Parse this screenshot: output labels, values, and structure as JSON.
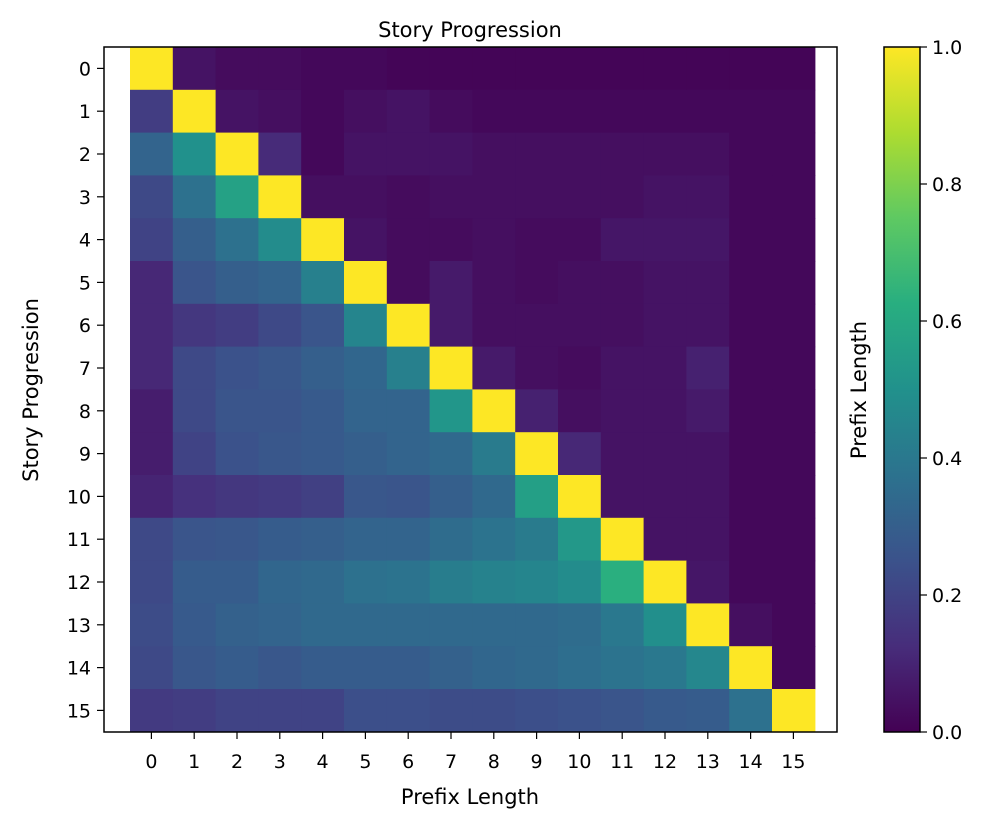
{
  "chart_data": {
    "type": "heatmap",
    "title": "Story Progression",
    "xlabel": "Prefix Length",
    "ylabel": "Story Progression",
    "colorbar_label": "Prefix Length",
    "colormap": "viridis",
    "x_ticks": [
      "0",
      "1",
      "2",
      "3",
      "4",
      "5",
      "6",
      "7",
      "8",
      "9",
      "10",
      "11",
      "12",
      "13",
      "14",
      "15"
    ],
    "y_ticks": [
      "0",
      "1",
      "2",
      "3",
      "4",
      "5",
      "6",
      "7",
      "8",
      "9",
      "10",
      "11",
      "12",
      "13",
      "14",
      "15"
    ],
    "colorbar_range": [
      0.0,
      1.0
    ],
    "colorbar_ticks": [
      "0.0",
      "0.2",
      "0.4",
      "0.6",
      "0.8",
      "1.0"
    ],
    "values": [
      [
        1.0,
        0.05,
        0.03,
        0.03,
        0.02,
        0.02,
        0.01,
        0.01,
        0.01,
        0.01,
        0.01,
        0.01,
        0.01,
        0.01,
        0.01,
        0.01
      ],
      [
        0.18,
        1.0,
        0.05,
        0.04,
        0.02,
        0.04,
        0.05,
        0.03,
        0.02,
        0.02,
        0.02,
        0.02,
        0.02,
        0.02,
        0.02,
        0.02
      ],
      [
        0.32,
        0.5,
        1.0,
        0.12,
        0.02,
        0.05,
        0.05,
        0.05,
        0.04,
        0.04,
        0.04,
        0.04,
        0.04,
        0.04,
        0.02,
        0.02
      ],
      [
        0.22,
        0.37,
        0.57,
        1.0,
        0.04,
        0.04,
        0.03,
        0.04,
        0.04,
        0.04,
        0.04,
        0.04,
        0.05,
        0.05,
        0.02,
        0.02
      ],
      [
        0.2,
        0.3,
        0.37,
        0.48,
        1.0,
        0.05,
        0.03,
        0.03,
        0.04,
        0.03,
        0.03,
        0.06,
        0.06,
        0.06,
        0.02,
        0.02
      ],
      [
        0.11,
        0.26,
        0.3,
        0.32,
        0.43,
        1.0,
        0.03,
        0.07,
        0.04,
        0.03,
        0.04,
        0.04,
        0.05,
        0.05,
        0.02,
        0.02
      ],
      [
        0.11,
        0.16,
        0.18,
        0.22,
        0.26,
        0.45,
        1.0,
        0.07,
        0.04,
        0.04,
        0.04,
        0.04,
        0.05,
        0.05,
        0.02,
        0.02
      ],
      [
        0.11,
        0.22,
        0.25,
        0.27,
        0.3,
        0.33,
        0.43,
        1.0,
        0.07,
        0.04,
        0.03,
        0.05,
        0.05,
        0.09,
        0.02,
        0.02
      ],
      [
        0.08,
        0.22,
        0.26,
        0.26,
        0.28,
        0.32,
        0.32,
        0.52,
        1.0,
        0.09,
        0.04,
        0.05,
        0.05,
        0.07,
        0.02,
        0.02
      ],
      [
        0.08,
        0.2,
        0.25,
        0.27,
        0.28,
        0.3,
        0.32,
        0.34,
        0.41,
        1.0,
        0.11,
        0.05,
        0.05,
        0.05,
        0.02,
        0.02
      ],
      [
        0.1,
        0.14,
        0.16,
        0.17,
        0.19,
        0.27,
        0.26,
        0.3,
        0.34,
        0.56,
        1.0,
        0.05,
        0.05,
        0.05,
        0.02,
        0.02
      ],
      [
        0.22,
        0.26,
        0.27,
        0.29,
        0.3,
        0.32,
        0.32,
        0.35,
        0.38,
        0.41,
        0.53,
        1.0,
        0.05,
        0.05,
        0.02,
        0.02
      ],
      [
        0.22,
        0.29,
        0.29,
        0.33,
        0.34,
        0.37,
        0.38,
        0.42,
        0.44,
        0.45,
        0.48,
        0.63,
        1.0,
        0.06,
        0.02,
        0.02
      ],
      [
        0.23,
        0.28,
        0.31,
        0.32,
        0.34,
        0.34,
        0.34,
        0.34,
        0.34,
        0.34,
        0.35,
        0.4,
        0.49,
        1.0,
        0.04,
        0.02
      ],
      [
        0.22,
        0.27,
        0.29,
        0.27,
        0.29,
        0.29,
        0.29,
        0.31,
        0.33,
        0.34,
        0.36,
        0.38,
        0.4,
        0.46,
        1.0,
        0.02
      ],
      [
        0.17,
        0.18,
        0.2,
        0.2,
        0.2,
        0.24,
        0.24,
        0.23,
        0.23,
        0.24,
        0.25,
        0.26,
        0.28,
        0.29,
        0.37,
        1.0
      ]
    ]
  }
}
